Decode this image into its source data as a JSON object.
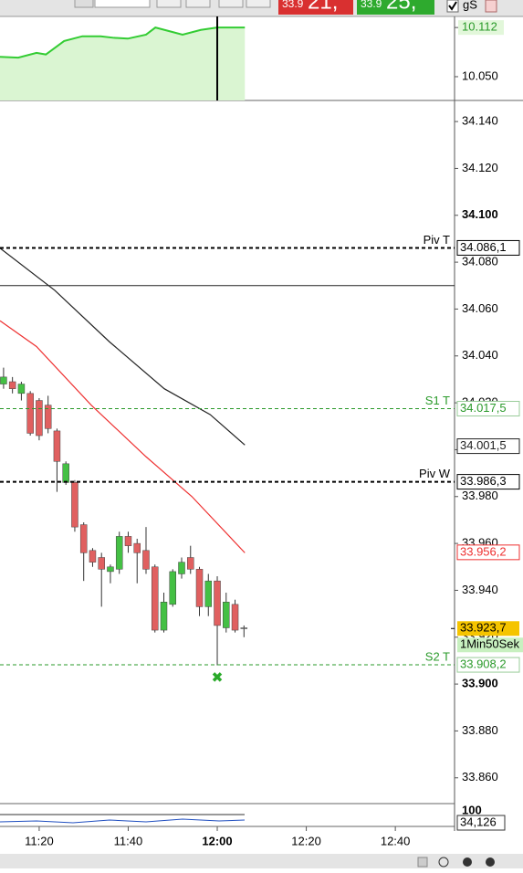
{
  "toolbar": {
    "bid_prefix": "33.9",
    "bid_digits": "21,",
    "ask_prefix": "33.9",
    "ask_digits": "25,",
    "checkbox_label": "gS"
  },
  "chart_data": {
    "type": "candlestick",
    "x": [
      672,
      674,
      676,
      678,
      680,
      682,
      684,
      686,
      688,
      690,
      692,
      694,
      696,
      698,
      700,
      702,
      704,
      706,
      708,
      710,
      712,
      714,
      716,
      718,
      720,
      722,
      724,
      726
    ],
    "open": [
      34.028,
      34.029,
      34.024,
      34.024,
      34.021,
      34.019,
      34.008,
      33.986,
      33.986,
      33.968,
      33.957,
      33.954,
      33.948,
      33.949,
      33.963,
      33.96,
      33.957,
      33.95,
      33.923,
      33.934,
      33.947,
      33.954,
      33.949,
      33.933,
      33.944,
      33.924,
      33.934,
      33.924
    ],
    "high": [
      34.035,
      34.031,
      34.029,
      34.025,
      34.022,
      34.023,
      34.009,
      33.995,
      33.987,
      33.969,
      33.958,
      33.956,
      33.951,
      33.965,
      33.965,
      33.962,
      33.967,
      33.951,
      33.939,
      33.949,
      33.954,
      33.959,
      33.95,
      33.947,
      33.946,
      33.939,
      33.936,
      33.925
    ],
    "low": [
      34.026,
      34.024,
      34.021,
      34.006,
      34.004,
      34.007,
      33.982,
      33.985,
      33.965,
      33.944,
      33.95,
      33.933,
      33.943,
      33.947,
      33.956,
      33.943,
      33.947,
      33.922,
      33.922,
      33.933,
      33.945,
      33.947,
      33.929,
      33.929,
      33.908,
      33.922,
      33.922,
      33.92
    ],
    "close": [
      34.031,
      34.026,
      34.028,
      34.007,
      34.006,
      34.009,
      33.995,
      33.994,
      33.967,
      33.956,
      33.952,
      33.949,
      33.95,
      33.963,
      33.959,
      33.956,
      33.949,
      33.923,
      33.935,
      33.948,
      33.952,
      33.949,
      33.933,
      33.944,
      33.925,
      33.935,
      33.923,
      33.924
    ],
    "up_color": "#44c044",
    "down_color": "#e06060",
    "flat_color": "#888888",
    "xlim": [
      671.2,
      773.3
    ],
    "ylim": [
      33.849,
      34.149
    ],
    "xticks": [
      {
        "value": 680,
        "label": "11:20"
      },
      {
        "value": 700,
        "label": "11:40"
      },
      {
        "value": 720,
        "label": "12:00"
      },
      {
        "value": 740,
        "label": "12:20"
      },
      {
        "value": 760,
        "label": "12:40"
      }
    ],
    "yticks": [
      {
        "value": 34.14,
        "label": "34.140"
      },
      {
        "value": 34.12,
        "label": "34.120"
      },
      {
        "value": 34.1,
        "label": "34.100"
      },
      {
        "value": 34.08,
        "label": "34.080"
      },
      {
        "value": 34.06,
        "label": "34.060"
      },
      {
        "value": 34.04,
        "label": "34.040"
      },
      {
        "value": 34.02,
        "label": "34.020"
      },
      {
        "value": 34.0,
        "label": "34.000"
      },
      {
        "value": 33.98,
        "label": "33.980"
      },
      {
        "value": 33.96,
        "label": "33.960"
      },
      {
        "value": 33.94,
        "label": "33.940"
      },
      {
        "value": 33.92,
        "label": "33.920"
      },
      {
        "value": 33.9,
        "label": "33.900"
      },
      {
        "value": 33.88,
        "label": "33.880"
      },
      {
        "value": 33.86,
        "label": "33.860"
      }
    ],
    "plain_level": {
      "value": 34.07,
      "color": "#222222"
    },
    "levels": [
      {
        "name": "Piv T",
        "value": 34.0861,
        "label": "34.086,1",
        "color": "#000000"
      },
      {
        "name": "S1 T",
        "value": 34.0175,
        "label": "34.017,5",
        "color": "#2a9a2a"
      },
      {
        "name": "Piv W",
        "value": 33.9863,
        "label": "33.986,3",
        "color": "#000000"
      },
      {
        "name": "S2 T",
        "value": 33.9082,
        "label": "33.908,2",
        "color": "#2a9a2a"
      }
    ],
    "moving_averages": [
      {
        "color": "#222222",
        "x": [
          671.2,
          683.5,
          695.8,
          708.1,
          718.4,
          726.2
        ],
        "values": [
          34.086,
          34.068,
          34.046,
          34.026,
          34.015,
          34.002
        ],
        "last": {
          "value": 34.0015,
          "label": "34.001,5"
        }
      },
      {
        "color": "#ee3030",
        "x": [
          671.2,
          679.4,
          691.7,
          704.0,
          714.3,
          726.2
        ],
        "values": [
          34.055,
          34.044,
          34.019,
          33.997,
          33.98,
          33.956
        ],
        "last": {
          "value": 33.9562,
          "label": "33.956,2"
        }
      }
    ],
    "current_price": {
      "value": 33.9237,
      "label": "33.923,7",
      "interval": "1Min50Sek"
    },
    "marker": {
      "x": 720,
      "value": 33.903,
      "color": "#2aaa2a"
    },
    "indicator": {
      "x": [
        671.2,
        675.3,
        679.4,
        681.5,
        685.6,
        689.7,
        693.8,
        696.8,
        699.9,
        704.0,
        706.1,
        710.2,
        712.2,
        716.3,
        720.0,
        726.2
      ],
      "values": [
        10.075,
        10.074,
        10.08,
        10.078,
        10.095,
        10.101,
        10.101,
        10.099,
        10.098,
        10.103,
        10.112,
        10.106,
        10.103,
        10.109,
        10.112,
        10.112
      ],
      "ylim": [
        10.02,
        10.126
      ],
      "yticks": [
        10.112,
        {
          "value": 10.05,
          "label": "10.050"
        }
      ],
      "color": "#33cc33",
      "cursor_x": 720
    },
    "lower_panel": {
      "ytick": 100,
      "last": {
        "value": 34.126,
        "label": "34,126"
      }
    }
  }
}
